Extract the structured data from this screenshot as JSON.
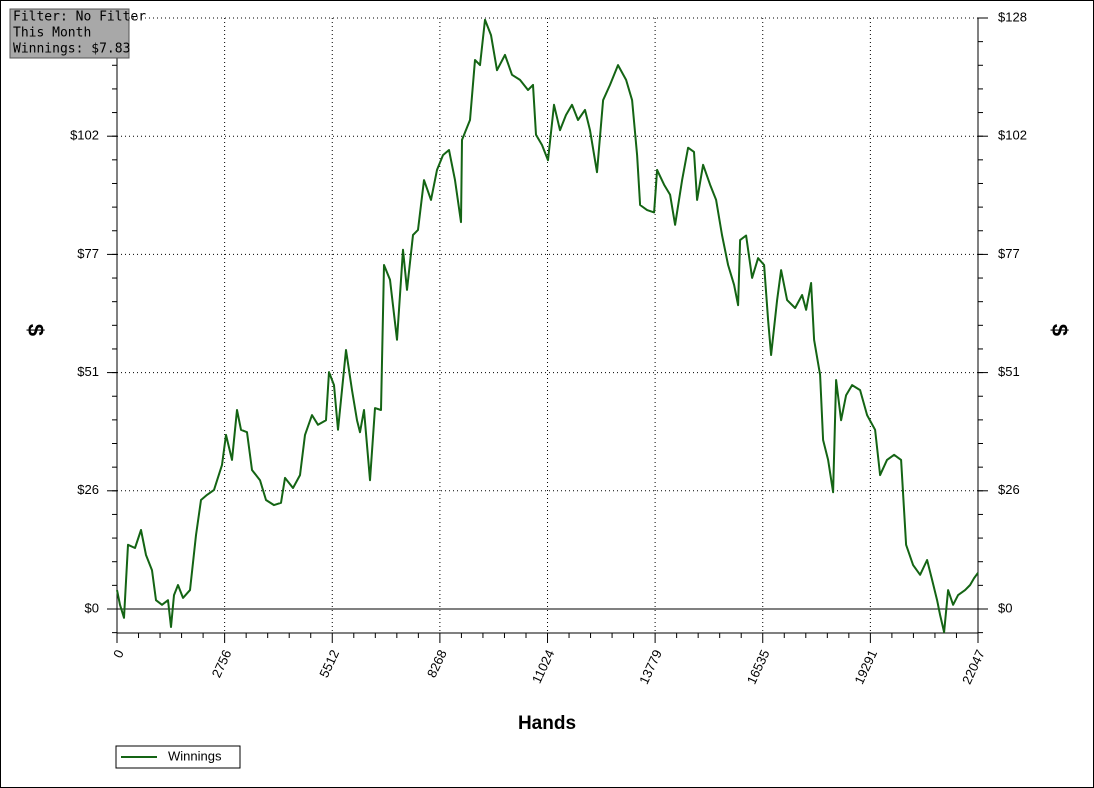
{
  "chart_data": {
    "type": "line",
    "info_box": [
      "Filter: No Filter",
      "This Month",
      "Winnings: $7.83"
    ],
    "x_label": "Hands",
    "y_label": "$",
    "xlim": [
      0,
      22047
    ],
    "xticks": [
      0,
      2756,
      5512,
      8268,
      11024,
      13779,
      16535,
      19291,
      22047
    ],
    "ylim": [
      -5.2,
      128
    ],
    "yticks": [
      {
        "value": 0,
        "label": "$0"
      },
      {
        "value": 25.6,
        "label": "$26"
      },
      {
        "value": 51.2,
        "label": "$51"
      },
      {
        "value": 76.8,
        "label": "$77"
      },
      {
        "value": 102.4,
        "label": "$102"
      },
      {
        "value": 128,
        "label": "$128"
      }
    ],
    "grid": true,
    "legend": "bottom-left",
    "x": [
      0,
      77,
      179,
      282,
      461,
      615,
      743,
      896,
      999,
      1152,
      1306,
      1383,
      1460,
      1562,
      1690,
      1869,
      2023,
      2151,
      2305,
      2484,
      2689,
      2791,
      2945,
      3073,
      3175,
      3329,
      3457,
      3662,
      3815,
      4020,
      4199,
      4302,
      4507,
      4686,
      4814,
      4993,
      5147,
      5352,
      5429,
      5557,
      5659,
      5864,
      6018,
      6146,
      6222,
      6325,
      6478,
      6606,
      6760,
      6837,
      6990,
      7170,
      7323,
      7426,
      7580,
      7708,
      7861,
      8041,
      8194,
      8348,
      8501,
      8655,
      8809,
      8834,
      9039,
      9167,
      9295,
      9423,
      9577,
      9731,
      9936,
      10115,
      10320,
      10525,
      10653,
      10730,
      10883,
      11037,
      11191,
      11344,
      11498,
      11652,
      11805,
      11985,
      12113,
      12292,
      12446,
      12625,
      12830,
      13035,
      13189,
      13317,
      13394,
      13573,
      13752,
      13829,
      14008,
      14162,
      14290,
      14469,
      14623,
      14776,
      14853,
      15007,
      15186,
      15340,
      15493,
      15647,
      15801,
      15903,
      15954,
      16108,
      16262,
      16415,
      16569,
      16671,
      16748,
      16902,
      17004,
      17158,
      17363,
      17542,
      17645,
      17773,
      17849,
      18003,
      18080,
      18208,
      18336,
      18413,
      18541,
      18669,
      18822,
      19027,
      19206,
      19411,
      19539,
      19718,
      19898,
      20077,
      20205,
      20384,
      20564,
      20743,
      20871,
      20999,
      21076,
      21178,
      21281,
      21409,
      21537,
      21716,
      21844,
      21947,
      22047
    ],
    "series": [
      {
        "name": "Winnings",
        "color": "#146414",
        "values": [
          4.1,
          0.9,
          -1.9,
          13.9,
          13.2,
          17.1,
          11.7,
          8.4,
          1.9,
          0.9,
          1.9,
          -3.9,
          3.0,
          5.2,
          2.4,
          4.1,
          16.0,
          23.6,
          24.7,
          25.8,
          31.2,
          37.7,
          32.3,
          43.1,
          38.8,
          38.3,
          30.1,
          27.9,
          23.6,
          22.5,
          23.0,
          28.4,
          26.2,
          29.0,
          37.7,
          42.0,
          39.9,
          40.9,
          51.3,
          48.5,
          38.8,
          56.1,
          47.4,
          40.9,
          38.3,
          43.1,
          27.9,
          43.5,
          43.1,
          74.5,
          71.3,
          58.3,
          77.8,
          69.1,
          81.0,
          82.1,
          92.9,
          88.6,
          95.1,
          98.3,
          99.4,
          92.9,
          83.8,
          101.6,
          105.9,
          118.9,
          117.8,
          127.6,
          124.3,
          116.7,
          120.0,
          115.7,
          114.6,
          112.4,
          113.5,
          102.7,
          100.5,
          97.2,
          109.2,
          103.7,
          107.0,
          109.2,
          105.9,
          108.1,
          103.7,
          94.6,
          110.2,
          113.5,
          117.8,
          114.6,
          110.2,
          98.3,
          87.5,
          86.4,
          85.9,
          95.1,
          91.9,
          89.7,
          83.2,
          92.9,
          99.9,
          99.0,
          88.6,
          96.2,
          91.9,
          88.6,
          81.0,
          74.5,
          70.2,
          65.8,
          79.9,
          80.9,
          71.7,
          76.0,
          74.5,
          62.6,
          55.0,
          66.9,
          73.4,
          66.9,
          65.2,
          68.0,
          64.8,
          70.6,
          58.3,
          50.7,
          36.6,
          32.3,
          25.3,
          49.6,
          40.9,
          46.3,
          48.5,
          47.4,
          42.0,
          38.8,
          29.0,
          32.3,
          33.4,
          32.3,
          13.9,
          9.5,
          7.4,
          10.6,
          6.3,
          1.9,
          -1.3,
          -5.0,
          4.1,
          0.9,
          3.0,
          4.1,
          5.2,
          6.7,
          7.83
        ]
      }
    ]
  }
}
